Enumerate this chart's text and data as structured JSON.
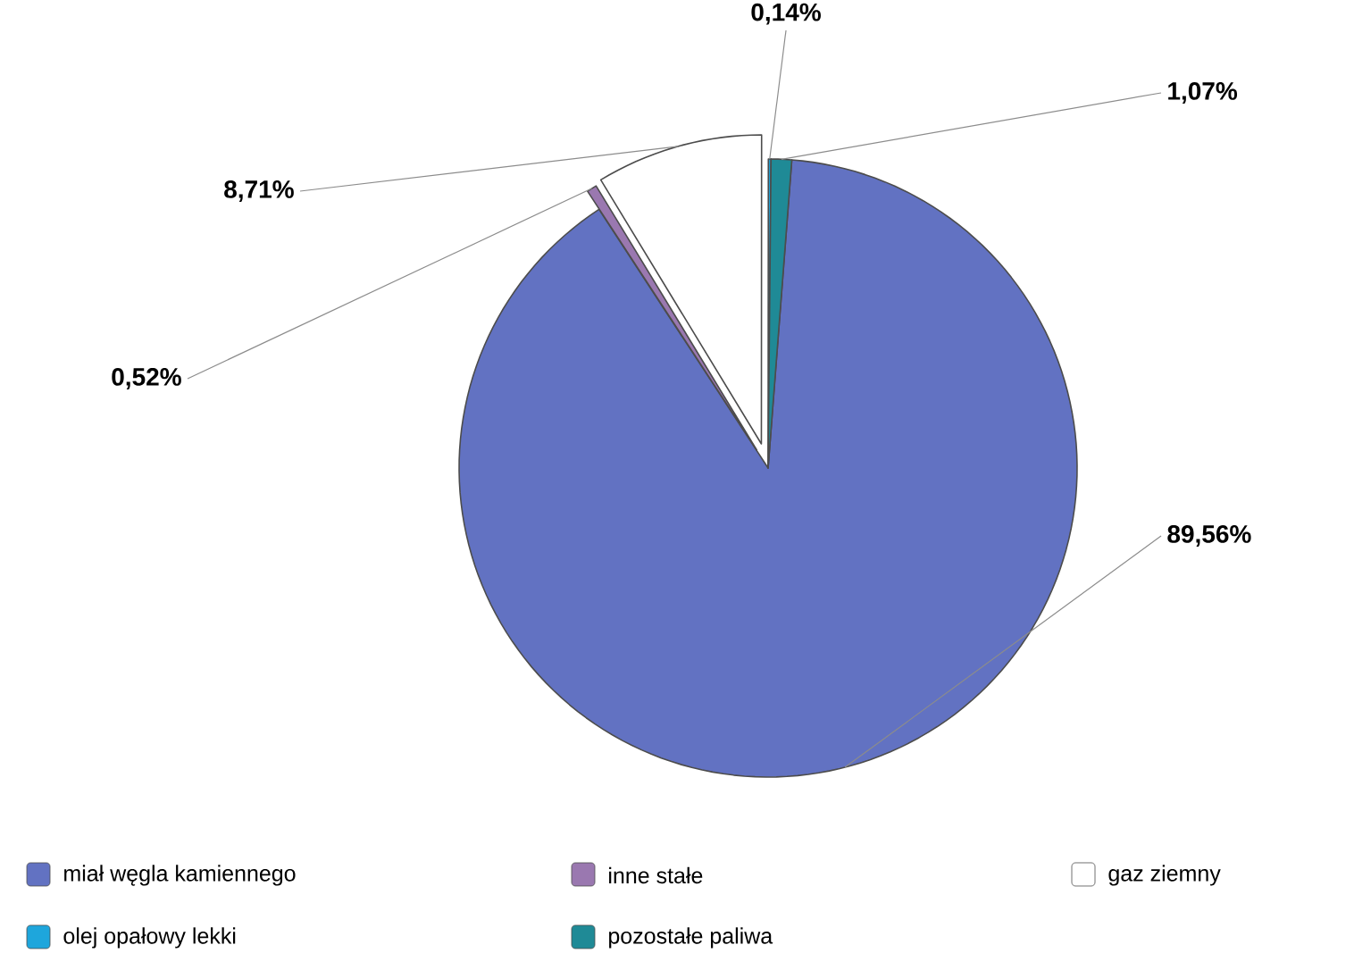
{
  "chart_data": {
    "type": "pie",
    "categories": [
      "miał węgla kamiennego",
      "inne stałe",
      "gaz ziemny",
      "olej opałowy lekki",
      "pozostałe paliwa"
    ],
    "values": [
      89.56,
      0.52,
      8.71,
      0.14,
      1.07
    ],
    "colors": [
      "#6272c2",
      "#9a78b0",
      "#ffffff",
      "#1ea6dc",
      "#1f8a96"
    ],
    "value_labels": [
      "89,56%",
      "0,52%",
      "8,71%",
      "0,14%",
      "1,07%"
    ],
    "legend": "bottom"
  }
}
